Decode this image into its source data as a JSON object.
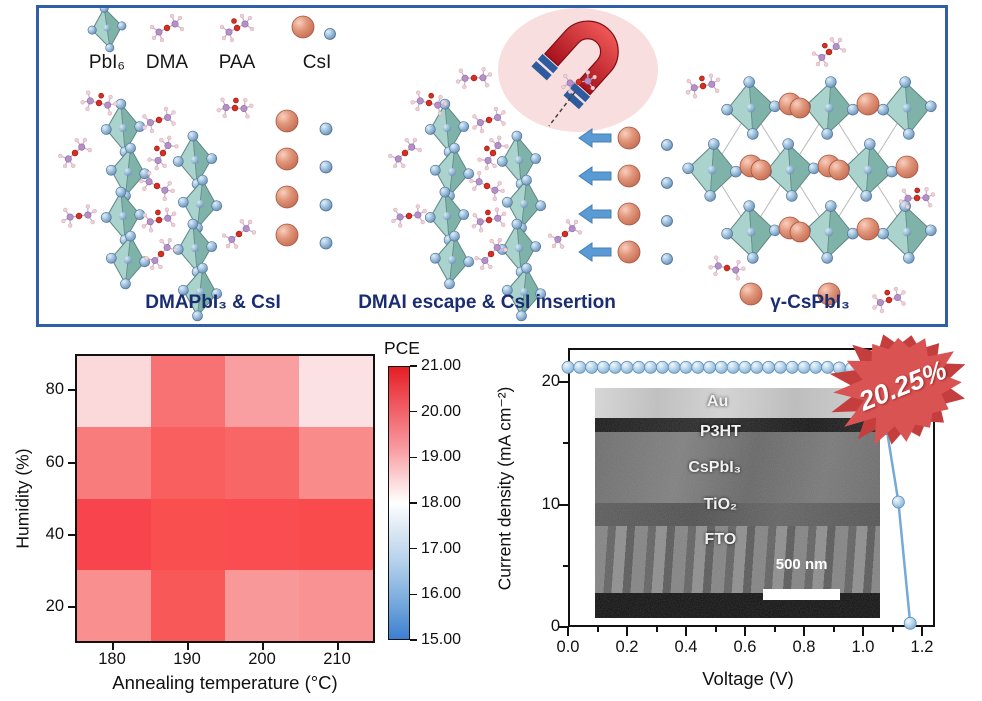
{
  "top_panel": {
    "legend": [
      {
        "label": "PbI₆"
      },
      {
        "label": "DMA"
      },
      {
        "label": "PAA"
      },
      {
        "label": "CsI"
      }
    ],
    "captions": [
      "DMAPbI₃ & CsI",
      "DMAI escape & CsI insertion",
      "γ-CsPbI₃"
    ]
  },
  "heatmap": {
    "ylabel": "Humidity (%)",
    "xlabel": "Annealing temperature (°C)",
    "x_ticks": [
      "180",
      "190",
      "200",
      "210"
    ],
    "y_ticks": [
      "80",
      "60",
      "40",
      "20"
    ],
    "colorbar_title": "PCE",
    "colorbar_ticks": [
      "21.00",
      "20.00",
      "19.00",
      "18.00",
      "17.00",
      "16.00",
      "15.00"
    ]
  },
  "jv": {
    "ylabel": "Current density (mA cm⁻²)",
    "xlabel": "Voltage (V)",
    "x_ticks": [
      "0.0",
      "0.2",
      "0.4",
      "0.6",
      "0.8",
      "1.0",
      "1.2"
    ],
    "y_ticks": [
      "20",
      "10",
      "0"
    ],
    "badge": "20.25%",
    "inset_labels": [
      "Au",
      "P3HT",
      "CsPbI₃",
      "TiO₂",
      "FTO"
    ],
    "scale_bar": "500 nm"
  },
  "chart_data": [
    {
      "type": "heatmap",
      "title": "PCE map",
      "xlabel": "Annealing temperature (°C)",
      "ylabel": "Humidity (%)",
      "x": [
        180,
        190,
        200,
        210
      ],
      "y_rows_top_to_bottom": [
        80,
        60,
        40,
        20
      ],
      "colorbar": {
        "label": "PCE",
        "range": [
          15.0,
          21.0
        ],
        "orientation": "vertical",
        "colormap": "blue-white-red"
      },
      "values_pce_estimated": [
        [
          18.6,
          19.9,
          19.3,
          18.4
        ],
        [
          19.7,
          20.2,
          20.1,
          19.5
        ],
        [
          20.7,
          20.5,
          20.5,
          20.6
        ],
        [
          19.4,
          20.3,
          19.3,
          19.4
        ]
      ],
      "cell_colors": [
        [
          "#fbd9db",
          "#f87173",
          "#f99fa1",
          "#fbe1e3"
        ],
        [
          "#f87c7c",
          "#f95f5f",
          "#f96666",
          "#f98b8b"
        ],
        [
          "#f8444c",
          "#f94f4f",
          "#f94d51",
          "#f94b4b"
        ],
        [
          "#f98f8f",
          "#f95858",
          "#f99898",
          "#f99393"
        ]
      ]
    },
    {
      "type": "line",
      "title": "J-V curve of champion CsPbI3 solar cell",
      "xlabel": "Voltage (V)",
      "ylabel": "Current density (mA cm⁻²)",
      "xlim": [
        0.0,
        1.244
      ],
      "ylim": [
        0,
        22.8
      ],
      "x": [
        0.0,
        0.04,
        0.08,
        0.12,
        0.16,
        0.2,
        0.24,
        0.28,
        0.32,
        0.36,
        0.4,
        0.44,
        0.48,
        0.52,
        0.56,
        0.6,
        0.64,
        0.68,
        0.72,
        0.76,
        0.8,
        0.84,
        0.88,
        0.92,
        0.96,
        1.0,
        1.04,
        1.08,
        1.12,
        1.16
      ],
      "y": [
        21.2,
        21.2,
        21.2,
        21.2,
        21.2,
        21.2,
        21.2,
        21.2,
        21.2,
        21.2,
        21.2,
        21.2,
        21.2,
        21.2,
        21.2,
        21.2,
        21.2,
        21.2,
        21.2,
        21.2,
        21.2,
        21.2,
        21.2,
        21.15,
        21.1,
        21.0,
        20.4,
        16.2,
        10.2,
        0.3
      ],
      "annotation": "20.25%",
      "line_color": "#74a9d8",
      "marker_color": "#9cc2e0",
      "legend": "none",
      "grid": false
    }
  ],
  "colors": {
    "panel_border": "#2e5fa7",
    "caption_navy": "#1b2d72",
    "badge_red": "#d95353",
    "badge_red_dark": "#c43e3e",
    "octahedron_teal": "#8fbfb7",
    "iodine_blue": "#7ba7cc",
    "cesium_salmon": "#dd8b72",
    "arrow_blue": "#5b9bd5",
    "magnet_red": "#d32630",
    "magnet_pole_blue": "#2e5b9d"
  }
}
